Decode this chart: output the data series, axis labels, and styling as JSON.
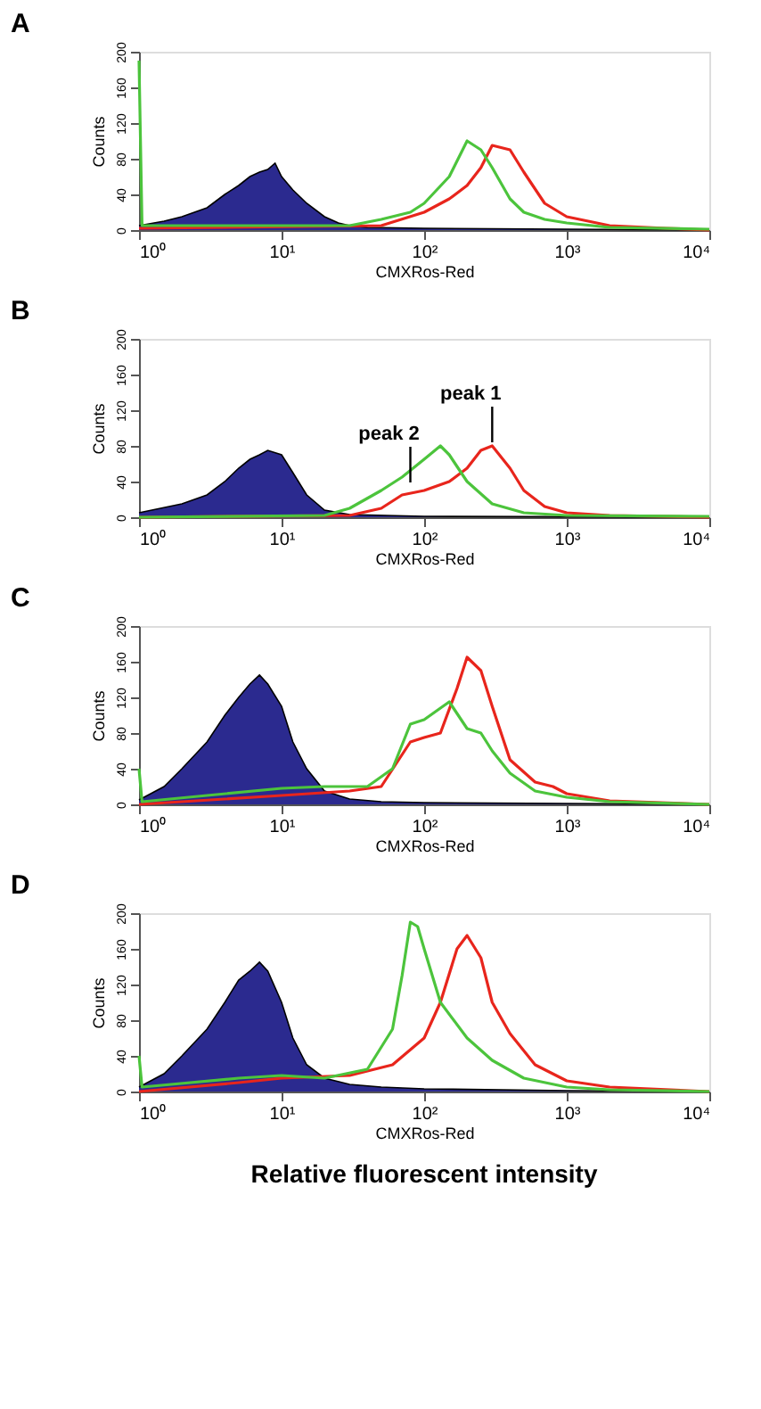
{
  "chart_data": [
    {
      "type": "line",
      "title": "A",
      "xlabel": "CMXRos-Red",
      "ylabel": "Counts",
      "log": "x",
      "grid": false,
      "xlim": [
        1,
        10000
      ],
      "ylim": [
        0,
        200
      ],
      "xticks": [
        {
          "value": 1,
          "label": "10⁰"
        },
        {
          "value": 10,
          "label": "10¹"
        },
        {
          "value": 100,
          "label": "10²"
        },
        {
          "value": 1000,
          "label": "10³"
        },
        {
          "value": 10000,
          "label": "10⁴"
        }
      ],
      "yticks": [
        0,
        40,
        80,
        120,
        160,
        200
      ],
      "series": [
        {
          "type": "area",
          "color": "#2b2a8f",
          "x": [
            1,
            1.5,
            2,
            3,
            4,
            5,
            6,
            7,
            8,
            9,
            10,
            12,
            15,
            20,
            25,
            30,
            40,
            100,
            1000,
            10000
          ],
          "values": [
            5,
            10,
            15,
            25,
            40,
            50,
            60,
            65,
            68,
            75,
            60,
            45,
            30,
            15,
            8,
            5,
            3,
            2,
            1,
            0
          ]
        },
        {
          "color": "#e8251c",
          "x": [
            1,
            50,
            100,
            150,
            200,
            250,
            300,
            400,
            500,
            700,
            1000,
            2000,
            5000,
            10000
          ],
          "values": [
            2,
            5,
            20,
            35,
            50,
            70,
            95,
            90,
            65,
            30,
            15,
            5,
            2,
            0
          ]
        },
        {
          "color": "#4cc43c",
          "x": [
            1,
            1.05,
            10,
            30,
            50,
            80,
            100,
            150,
            200,
            250,
            300,
            400,
            500,
            700,
            1000,
            2000,
            10000
          ],
          "values": [
            190,
            5,
            5,
            5,
            12,
            20,
            30,
            60,
            100,
            90,
            70,
            35,
            20,
            12,
            8,
            3,
            1
          ]
        }
      ]
    },
    {
      "type": "line",
      "title": "B",
      "xlabel": "CMXRos-Red",
      "ylabel": "Counts",
      "log": "x",
      "grid": false,
      "xlim": [
        1,
        10000
      ],
      "ylim": [
        0,
        200
      ],
      "xticks": [
        {
          "value": 1,
          "label": "10⁰"
        },
        {
          "value": 10,
          "label": "10¹"
        },
        {
          "value": 100,
          "label": "10²"
        },
        {
          "value": 1000,
          "label": "10³"
        },
        {
          "value": 10000,
          "label": "10⁴"
        }
      ],
      "yticks": [
        0,
        40,
        80,
        120,
        160,
        200
      ],
      "annotations": [
        {
          "text": "peak 1",
          "x": 300,
          "y": 80
        },
        {
          "text": "peak 2",
          "x": 80,
          "y": 35
        }
      ],
      "series": [
        {
          "type": "area",
          "color": "#2b2a8f",
          "x": [
            1,
            2,
            3,
            4,
            5,
            6,
            7,
            8,
            10,
            12,
            15,
            20,
            30,
            100,
            10000
          ],
          "values": [
            5,
            15,
            25,
            40,
            55,
            65,
            70,
            75,
            70,
            50,
            25,
            8,
            3,
            1,
            0
          ]
        },
        {
          "color": "#e8251c",
          "x": [
            1,
            30,
            50,
            70,
            100,
            150,
            200,
            250,
            300,
            400,
            500,
            700,
            1000,
            2000,
            10000
          ],
          "values": [
            0,
            2,
            10,
            25,
            30,
            40,
            55,
            75,
            80,
            55,
            30,
            12,
            5,
            2,
            0
          ]
        },
        {
          "color": "#4cc43c",
          "x": [
            1,
            20,
            30,
            50,
            70,
            100,
            130,
            150,
            200,
            300,
            500,
            1000,
            10000
          ],
          "values": [
            0,
            2,
            10,
            30,
            45,
            65,
            80,
            70,
            40,
            15,
            5,
            2,
            1
          ]
        }
      ]
    },
    {
      "type": "line",
      "title": "C",
      "xlabel": "CMXRos-Red",
      "ylabel": "Counts",
      "log": "x",
      "grid": false,
      "xlim": [
        1,
        10000
      ],
      "ylim": [
        0,
        200
      ],
      "xticks": [
        {
          "value": 1,
          "label": "10⁰"
        },
        {
          "value": 10,
          "label": "10¹"
        },
        {
          "value": 100,
          "label": "10²"
        },
        {
          "value": 1000,
          "label": "10³"
        },
        {
          "value": 10000,
          "label": "10⁴"
        }
      ],
      "yticks": [
        0,
        40,
        80,
        120,
        160,
        200
      ],
      "series": [
        {
          "type": "area",
          "color": "#2b2a8f",
          "x": [
            1,
            1.5,
            2,
            3,
            4,
            5,
            6,
            7,
            8,
            10,
            12,
            15,
            20,
            30,
            50,
            100,
            1000,
            10000
          ],
          "values": [
            5,
            20,
            40,
            70,
            100,
            120,
            135,
            145,
            135,
            110,
            70,
            40,
            15,
            6,
            3,
            2,
            1,
            0
          ]
        },
        {
          "color": "#e8251c",
          "x": [
            1,
            10,
            30,
            50,
            80,
            100,
            130,
            170,
            200,
            250,
            300,
            400,
            600,
            800,
            1000,
            2000,
            10000
          ],
          "values": [
            0,
            10,
            15,
            20,
            70,
            75,
            80,
            130,
            165,
            150,
            110,
            50,
            25,
            20,
            12,
            4,
            0
          ]
        },
        {
          "color": "#4cc43c",
          "x": [
            1,
            1.05,
            3,
            10,
            20,
            40,
            60,
            80,
            100,
            150,
            200,
            250,
            300,
            400,
            600,
            1000,
            2000,
            10000
          ],
          "values": [
            40,
            3,
            10,
            18,
            20,
            20,
            40,
            90,
            95,
            115,
            85,
            80,
            60,
            35,
            15,
            8,
            3,
            0
          ]
        }
      ]
    },
    {
      "type": "line",
      "title": "D",
      "xlabel": "CMXRos-Red",
      "ylabel": "Counts",
      "log": "x",
      "grid": false,
      "xlim": [
        1,
        10000
      ],
      "ylim": [
        0,
        200
      ],
      "xticks": [
        {
          "value": 1,
          "label": "10⁰"
        },
        {
          "value": 10,
          "label": "10¹"
        },
        {
          "value": 100,
          "label": "10²"
        },
        {
          "value": 1000,
          "label": "10³"
        },
        {
          "value": 10000,
          "label": "10⁴"
        }
      ],
      "yticks": [
        0,
        40,
        80,
        120,
        160,
        200
      ],
      "annotations": [
        "Relative fluorescent intensity"
      ],
      "series": [
        {
          "type": "area",
          "color": "#2b2a8f",
          "x": [
            1,
            1.5,
            2,
            3,
            4,
            5,
            6,
            7,
            8,
            10,
            12,
            15,
            20,
            30,
            50,
            100,
            1000,
            10000
          ],
          "values": [
            5,
            20,
            40,
            70,
            100,
            125,
            135,
            145,
            135,
            100,
            60,
            30,
            15,
            8,
            5,
            3,
            1,
            0
          ]
        },
        {
          "color": "#e8251c",
          "x": [
            1,
            5,
            10,
            30,
            60,
            100,
            130,
            170,
            200,
            250,
            300,
            400,
            600,
            1000,
            2000,
            10000
          ],
          "values": [
            0,
            10,
            15,
            18,
            30,
            60,
            100,
            160,
            175,
            150,
            100,
            65,
            30,
            12,
            5,
            0
          ]
        },
        {
          "color": "#4cc43c",
          "x": [
            1,
            1.05,
            5,
            10,
            20,
            40,
            60,
            70,
            80,
            90,
            100,
            130,
            200,
            300,
            500,
            1000,
            2000,
            10000
          ],
          "values": [
            40,
            5,
            15,
            18,
            15,
            25,
            70,
            130,
            190,
            185,
            160,
            100,
            60,
            35,
            15,
            5,
            2,
            0
          ]
        }
      ]
    }
  ]
}
